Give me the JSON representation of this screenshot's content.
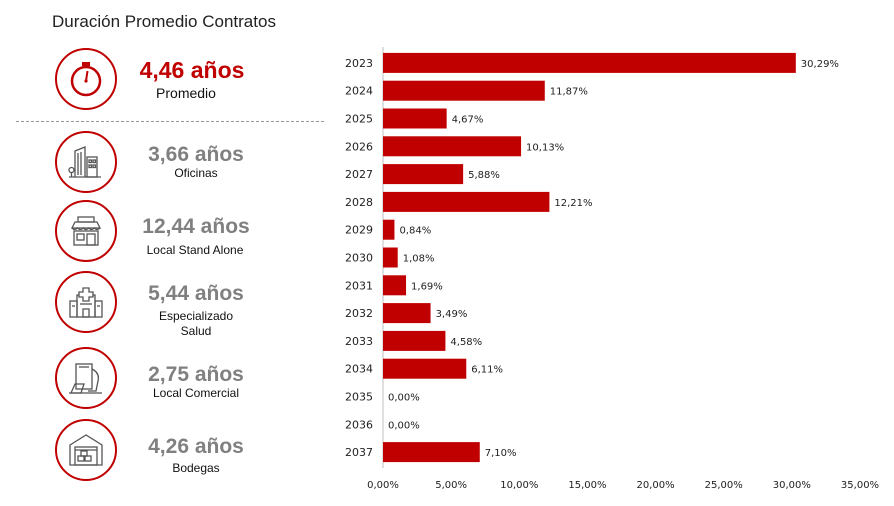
{
  "header": {
    "title": "Duración Promedio Contratos"
  },
  "summary": {
    "value": "4,46 años",
    "label": "Promedio"
  },
  "categories": [
    {
      "value": "3,66 años",
      "label": "Oficinas",
      "icon": "office-building-icon"
    },
    {
      "value": "12,44 años",
      "label": "Local Stand Alone",
      "icon": "storefront-icon"
    },
    {
      "value": "5,44 años",
      "label": "Especializado Salud",
      "icon": "hospital-icon"
    },
    {
      "value": "2,75 años",
      "label": "Local Comercial",
      "icon": "commercial-building-icon"
    },
    {
      "value": "4,26 años",
      "label": "Bodegas",
      "icon": "warehouse-icon"
    }
  ],
  "colors": {
    "accent": "#c00000",
    "muted": "#808080"
  },
  "chart_data": {
    "type": "bar",
    "orientation": "horizontal",
    "categories": [
      "2023",
      "2024",
      "2025",
      "2026",
      "2027",
      "2028",
      "2029",
      "2030",
      "2031",
      "2032",
      "2033",
      "2034",
      "2035",
      "2036",
      "2037"
    ],
    "values": [
      30.29,
      11.87,
      4.67,
      10.13,
      5.88,
      12.21,
      0.84,
      1.08,
      1.69,
      3.49,
      4.58,
      6.11,
      0.0,
      0.0,
      7.1
    ],
    "value_labels": [
      "30,29%",
      "11,87%",
      "4,67%",
      "10,13%",
      "5,88%",
      "12,21%",
      "0,84%",
      "1,08%",
      "1,69%",
      "3,49%",
      "4,58%",
      "6,11%",
      "0,00%",
      "0,00%",
      "7,10%"
    ],
    "xlim": [
      0,
      35
    ],
    "xticks": [
      "0,00%",
      "5,00%",
      "10,00%",
      "15,00%",
      "20,00%",
      "25,00%",
      "30,00%",
      "35,00%"
    ],
    "grid": false,
    "color": "#c00000"
  }
}
